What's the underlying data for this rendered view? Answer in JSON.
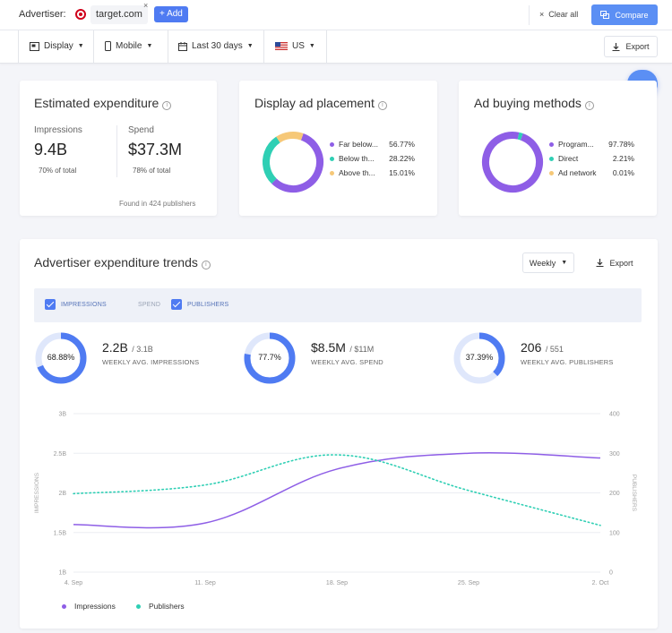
{
  "topbar": {
    "advertiser_label": "Advertiser:",
    "advertiser_name": "target.com",
    "remove_glyph": "×",
    "add_label": "+ Add",
    "clear_all": "Clear all",
    "clear_glyph": "×",
    "compare_label": "Compare"
  },
  "filters": {
    "display": "Display",
    "device": "Mobile",
    "period": "Last 30 days",
    "country": "US",
    "export": "Export"
  },
  "estimated_expenditure": {
    "title": "Estimated expenditure",
    "impressions_label": "Impressions",
    "impressions_value": "9.4B",
    "impressions_share": "70% of total",
    "spend_label": "Spend",
    "spend_value": "$37.3M",
    "spend_share": "78% of total",
    "found_in": "Found in 424 publishers"
  },
  "display_ad_placement": {
    "title": "Display ad placement",
    "items": [
      {
        "label": "Far below...",
        "value": "56.77%",
        "pct": 56.77,
        "color": "#8e5ee6"
      },
      {
        "label": "Below th...",
        "value": "28.22%",
        "pct": 28.22,
        "color": "#2fcfb4"
      },
      {
        "label": "Above th...",
        "value": "15.01%",
        "pct": 15.01,
        "color": "#f6c878"
      }
    ]
  },
  "ad_buying_methods": {
    "title": "Ad buying methods",
    "items": [
      {
        "label": "Program...",
        "value": "97.78%",
        "pct": 97.78,
        "color": "#8e5ee6"
      },
      {
        "label": "Direct",
        "value": "2.21%",
        "pct": 2.21,
        "color": "#2fcfb4"
      },
      {
        "label": "Ad network",
        "value": "0.01%",
        "pct": 0.01,
        "color": "#f6c878"
      }
    ]
  },
  "trends": {
    "title": "Advertiser expenditure trends",
    "granularity": "Weekly",
    "export": "Export",
    "toggles": {
      "impressions": "IMPRESSIONS",
      "spend": "SPEND",
      "publishers": "PUBLISHERS"
    },
    "kpis": [
      {
        "ring": "68.88%",
        "pct": 68.88,
        "value": "2.2B",
        "total": "/ 3.1B",
        "label": "WEEKLY AVG. IMPRESSIONS"
      },
      {
        "ring": "77.7%",
        "pct": 77.7,
        "value": "$8.5M",
        "total": "/ $11M",
        "label": "WEEKLY AVG. SPEND"
      },
      {
        "ring": "37.39%",
        "pct": 37.39,
        "value": "206",
        "total": "/ 551",
        "label": "WEEKLY AVG. PUBLISHERS"
      }
    ],
    "legend": {
      "impressions": "Impressions",
      "publishers": "Publishers"
    }
  },
  "colors": {
    "accent": "#4f7bf2",
    "purple": "#8e5ee6",
    "teal": "#2fcfb4",
    "amber": "#f6c878"
  },
  "chart_data": {
    "type": "line",
    "x": [
      "4. Sep",
      "11. Sep",
      "18. Sep",
      "25. Sep",
      "2. Oct"
    ],
    "ylabel": "IMPRESSIONS",
    "y2label": "PUBLISHERS",
    "yticks": [
      "1B",
      "1.5B",
      "2B",
      "2.5B",
      "3B"
    ],
    "y2ticks": [
      "0",
      "100",
      "200",
      "300",
      "400"
    ],
    "ylim": [
      1,
      3
    ],
    "y2lim": [
      0,
      400
    ],
    "grid": true,
    "series": [
      {
        "name": "Impressions",
        "axis": "left",
        "style": "solid",
        "color": "#8e5ee6",
        "values": [
          1.6,
          1.62,
          2.3,
          2.5,
          2.44
        ]
      },
      {
        "name": "Publishers",
        "axis": "right",
        "style": "dotted",
        "color": "#2fcfb4",
        "values": [
          198,
          220,
          296,
          206,
          118
        ]
      }
    ]
  }
}
